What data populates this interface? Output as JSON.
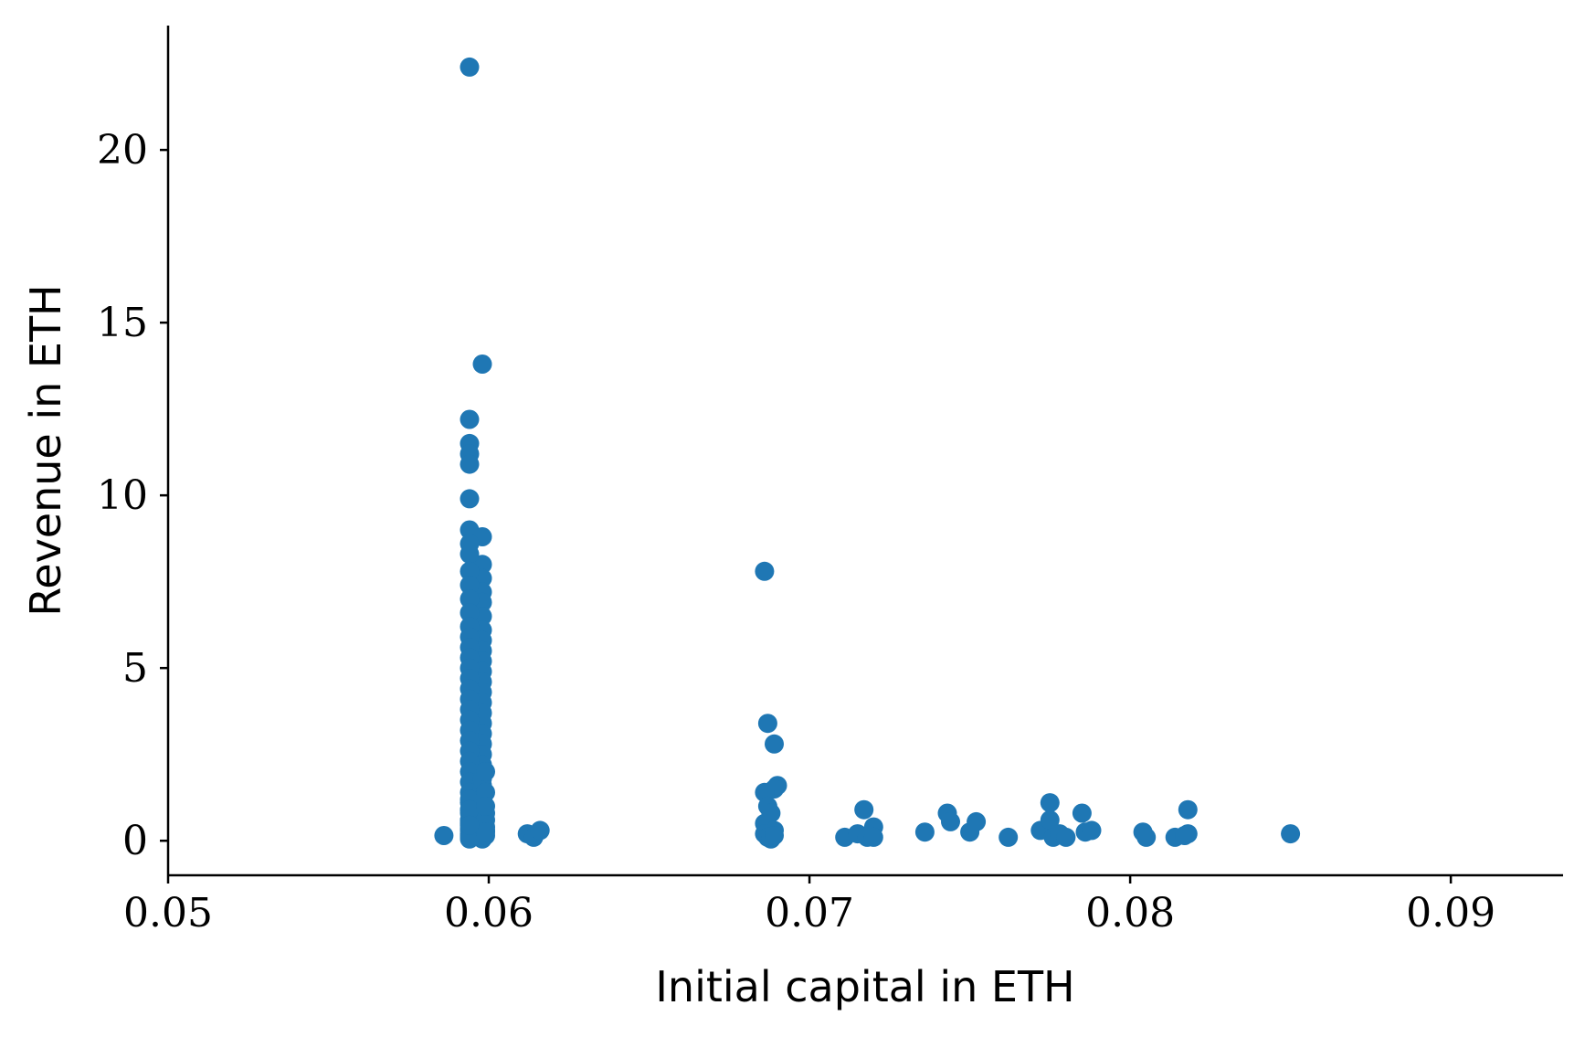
{
  "chart_data": {
    "type": "scatter",
    "xlabel": "Initial capital in ETH",
    "ylabel": "Revenue in ETH",
    "xlim": [
      0.05,
      0.0935
    ],
    "ylim": [
      -1.0,
      23.6
    ],
    "xticks": [
      0.05,
      0.06,
      0.07,
      0.08,
      0.09
    ],
    "xtick_labels": [
      "0.05",
      "0.06",
      "0.07",
      "0.08",
      "0.09"
    ],
    "yticks": [
      0,
      5,
      10,
      15,
      20
    ],
    "ytick_labels": [
      "0",
      "5",
      "10",
      "15",
      "20"
    ],
    "grid": false,
    "marker_color": "#1f77b4",
    "series": [
      {
        "x": [
          0.0594,
          0.0598,
          0.0594,
          0.0594,
          0.0594,
          0.0594,
          0.0594,
          0.0594,
          0.0598,
          0.0594,
          0.0598,
          0.0594,
          0.0598,
          0.0594,
          0.0598,
          0.0594,
          0.0598,
          0.0594,
          0.0598,
          0.0594,
          0.0598,
          0.0594,
          0.0598,
          0.0594,
          0.0598,
          0.0594,
          0.0598,
          0.0594,
          0.0598,
          0.0594,
          0.0598,
          0.0594,
          0.0598,
          0.0594,
          0.0598,
          0.0594,
          0.0598,
          0.0594,
          0.0598,
          0.0594,
          0.0598,
          0.0594,
          0.0598,
          0.0594,
          0.0598,
          0.0594,
          0.0598,
          0.0594,
          0.0598,
          0.0594,
          0.0598,
          0.0594,
          0.0598,
          0.0594,
          0.0598,
          0.0594,
          0.0598,
          0.0594,
          0.0598,
          0.0594,
          0.0598,
          0.0594,
          0.0598,
          0.0594,
          0.0598,
          0.0594,
          0.0598,
          0.0594,
          0.0598,
          0.0599,
          0.0594,
          0.0599,
          0.0594,
          0.0599,
          0.0594,
          0.0599,
          0.0594,
          0.0599,
          0.0594,
          0.0599,
          0.0594,
          0.0599,
          0.0594,
          0.0599,
          0.0594,
          0.0599,
          0.0594,
          0.0586,
          0.0612,
          0.0614,
          0.0616,
          0.0686,
          0.0687,
          0.0689,
          0.069,
          0.0689,
          0.0686,
          0.0687,
          0.0688,
          0.0686,
          0.0689,
          0.0686,
          0.0687,
          0.0688,
          0.0689,
          0.0711,
          0.0715,
          0.0717,
          0.0718,
          0.072,
          0.072,
          0.0736,
          0.0743,
          0.0744,
          0.075,
          0.0752,
          0.0762,
          0.0772,
          0.0775,
          0.0775,
          0.0776,
          0.0778,
          0.078,
          0.0785,
          0.0786,
          0.0788,
          0.0804,
          0.0805,
          0.0814,
          0.0817,
          0.0818,
          0.0818,
          0.085
        ],
        "y": [
          22.4,
          13.8,
          12.2,
          11.5,
          11.2,
          10.9,
          9.9,
          9.0,
          8.8,
          8.6,
          8.0,
          8.3,
          7.6,
          7.8,
          7.2,
          7.4,
          6.9,
          7.0,
          6.5,
          6.6,
          6.1,
          6.2,
          5.8,
          5.9,
          5.5,
          5.6,
          5.2,
          5.3,
          4.9,
          5.0,
          4.6,
          4.7,
          4.3,
          4.4,
          4.0,
          4.1,
          3.7,
          3.8,
          3.4,
          3.5,
          3.1,
          3.2,
          2.8,
          2.9,
          2.5,
          2.6,
          2.2,
          2.3,
          1.9,
          2.0,
          1.6,
          1.7,
          1.3,
          1.4,
          1.0,
          1.1,
          0.7,
          0.8,
          0.4,
          0.5,
          0.2,
          0.3,
          0.1,
          0.15,
          0.05,
          0.6,
          1.5,
          0.9,
          1.8,
          2.0,
          1.2,
          1.4,
          0.6,
          0.8,
          0.2,
          0.4,
          0.1,
          0.3,
          0.5,
          0.15,
          0.35,
          0.6,
          0.9,
          1.0,
          0.05,
          0.25,
          0.45,
          0.15,
          0.2,
          0.1,
          0.3,
          7.8,
          3.4,
          2.8,
          1.6,
          1.5,
          1.4,
          1.0,
          0.8,
          0.5,
          0.3,
          0.2,
          0.1,
          0.05,
          0.15,
          0.1,
          0.2,
          0.9,
          0.1,
          0.4,
          0.1,
          0.25,
          0.8,
          0.55,
          0.25,
          0.55,
          0.1,
          0.3,
          1.1,
          0.6,
          0.1,
          0.2,
          0.1,
          0.8,
          0.25,
          0.3,
          0.25,
          0.1,
          0.1,
          0.15,
          0.9,
          0.2,
          0.2
        ]
      }
    ]
  }
}
